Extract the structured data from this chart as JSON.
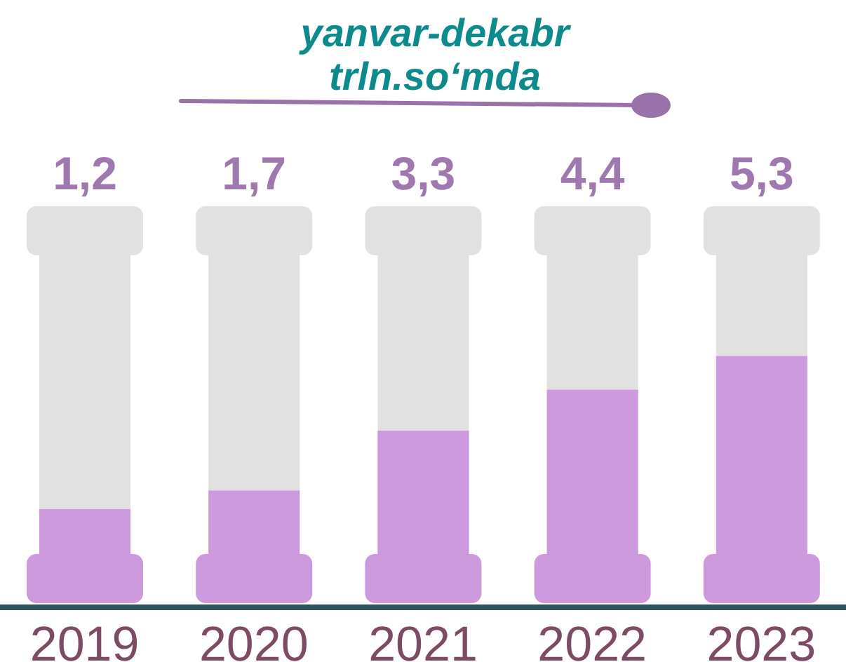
{
  "chart_data": {
    "type": "bar",
    "title": "yanvar-dekabr",
    "subtitle": "trln.so‘mda",
    "categories": [
      "2019",
      "2020",
      "2021",
      "2022",
      "2023"
    ],
    "values": [
      1.2,
      1.7,
      3.3,
      4.4,
      5.3
    ],
    "value_labels": [
      "1,2",
      "1,7",
      "3,3",
      "4,4",
      "5,3"
    ],
    "color": "#cd99dd"
  }
}
